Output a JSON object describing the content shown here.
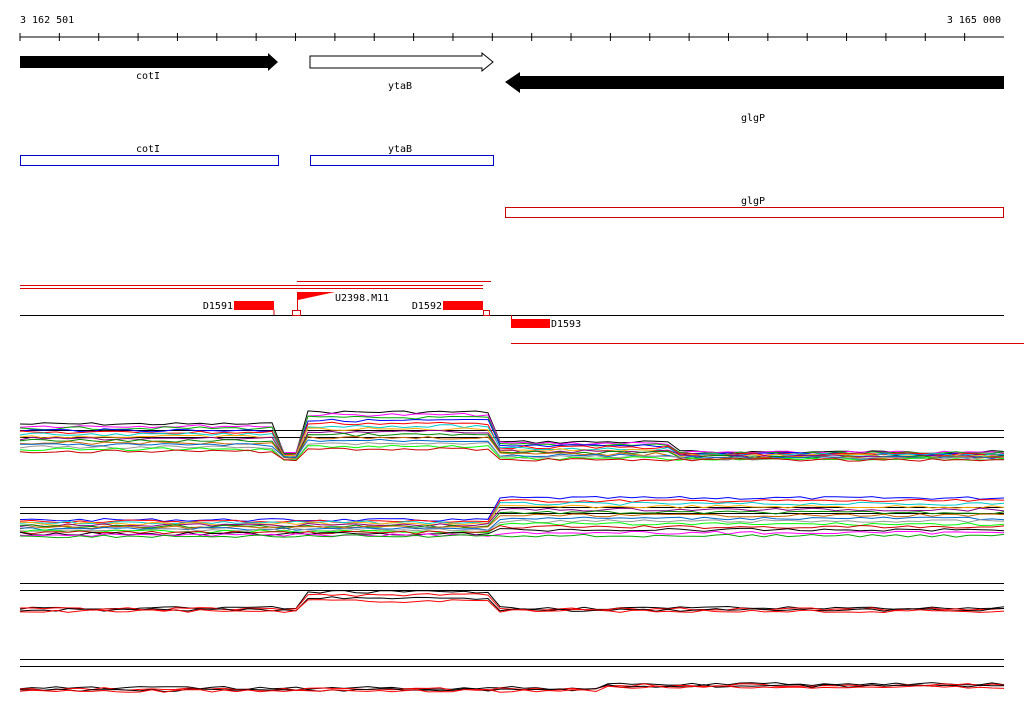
{
  "ruler": {
    "start": "3 162 501",
    "end": "3 165 000"
  },
  "genes": [
    {
      "label": "cotI"
    },
    {
      "label": "ytaB"
    },
    {
      "label": "glgP"
    }
  ],
  "cds": [
    {
      "label": "cotI"
    },
    {
      "label": "ytaB"
    },
    {
      "label": "glgP"
    }
  ],
  "features": [
    {
      "label": "D1591"
    },
    {
      "label": "U2398.M11"
    },
    {
      "label": "D1592"
    },
    {
      "label": "D1593"
    }
  ]
}
